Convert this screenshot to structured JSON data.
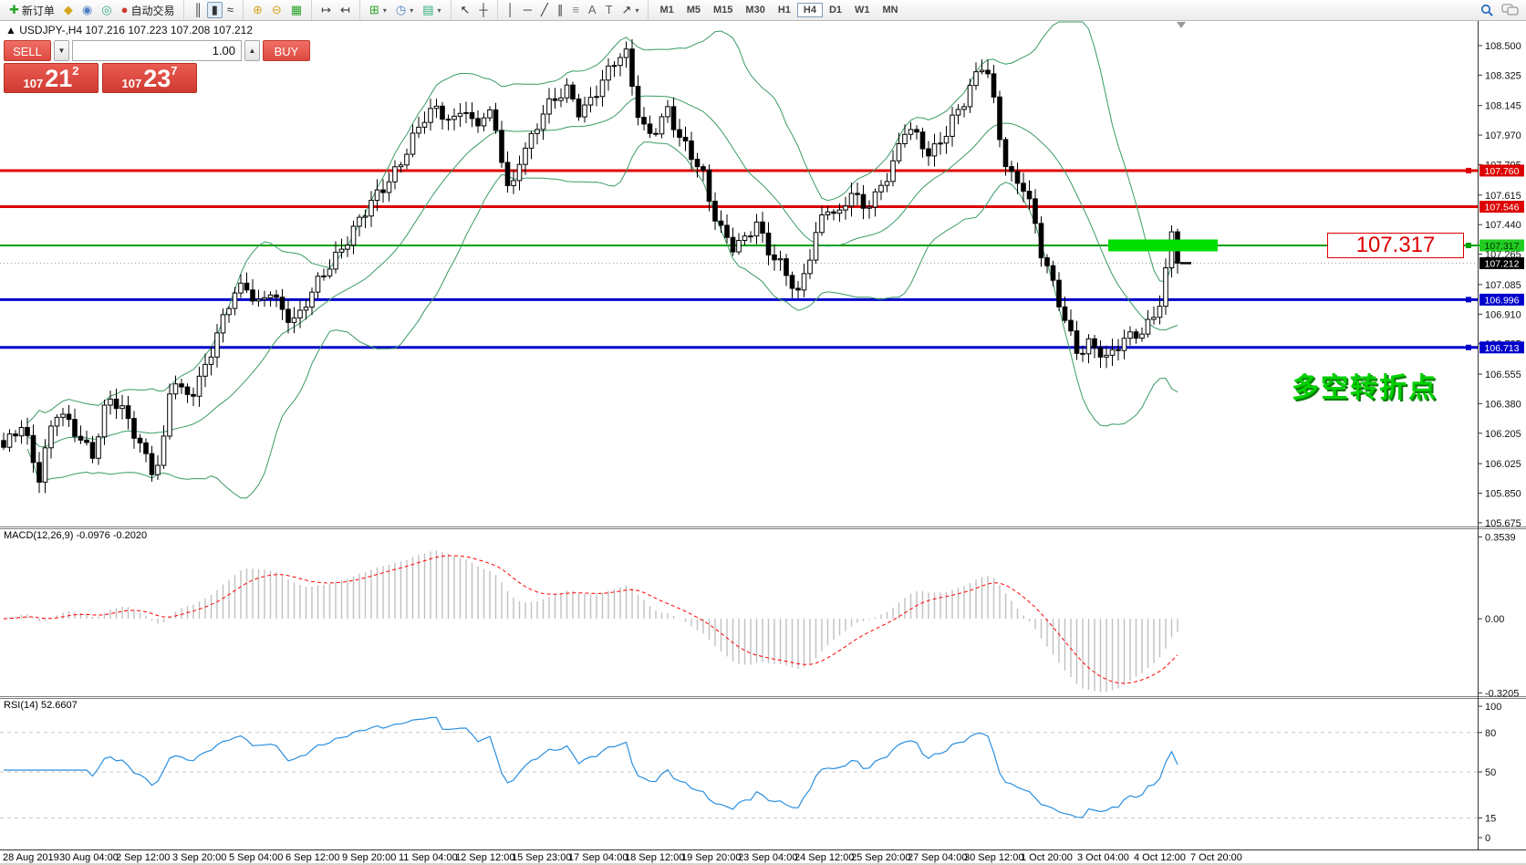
{
  "toolbar": {
    "new_order_label": "新订单",
    "auto_trading_label": "自动交易",
    "timeframes": [
      "M1",
      "M5",
      "M15",
      "M30",
      "H1",
      "H4",
      "D1",
      "W1",
      "MN"
    ],
    "active_timeframe": "H4",
    "icons": {
      "new_order": "✚",
      "tag": "◆",
      "profile": "◉",
      "signal": "◎",
      "auto": "●",
      "bars": "║",
      "candles": "▮",
      "line": "≈",
      "zoom_in": "⊕",
      "zoom_out": "⊖",
      "tile": "▦",
      "shift": "↦",
      "autoscroll": "↤",
      "add_ind": "⊞",
      "periods": "◷",
      "template": "▤",
      "cursor": "↖",
      "cross": "┼",
      "vline": "│",
      "hline": "─",
      "trend": "╱",
      "channel": "∥",
      "fib": "≡",
      "text": "A",
      "label": "T",
      "arrows": "↗",
      "caret": "▾"
    }
  },
  "chart": {
    "marker": "▲",
    "symbol_title": "USDJPY-,H4",
    "ohlc": "107.216 107.223 107.208 107.212"
  },
  "trade_panel": {
    "sell": "SELL",
    "buy": "BUY",
    "volume": "1.00",
    "sell_small": "107",
    "sell_big": "21",
    "sell_sup": "2",
    "buy_small": "107",
    "buy_big": "23",
    "buy_sup": "7"
  },
  "annotations": {
    "price_label": "107.317",
    "turning_point": "多空转折点"
  },
  "indicators": {
    "macd_label": "MACD(12,26,9) -0.0976 -0.2020",
    "rsi_label": "RSI(14) 52.6607"
  },
  "price_axis": {
    "ticks": [
      "108.500",
      "108.325",
      "108.145",
      "107.970",
      "107.795",
      "107.615",
      "107.440",
      "107.265",
      "107.085",
      "106.910",
      "106.735",
      "106.555",
      "106.380",
      "106.205",
      "106.025",
      "105.850",
      "105.675"
    ]
  },
  "time_axis": {
    "labels": [
      "28 Aug 2019",
      "30 Aug 04:00",
      "2 Sep 12:00",
      "3 Sep 20:00",
      "5 Sep 04:00",
      "6 Sep 12:00",
      "9 Sep 20:00",
      "11 Sep 04:00",
      "12 Sep 12:00",
      "15 Sep 23:00",
      "17 Sep 04:00",
      "18 Sep 12:00",
      "19 Sep 20:00",
      "23 Sep 04:00",
      "24 Sep 12:00",
      "25 Sep 20:00",
      "27 Sep 04:00",
      "30 Sep 12:00",
      "1 Oct 20:00",
      "3 Oct 04:00",
      "4 Oct 12:00",
      "7 Oct 20:00"
    ]
  },
  "chart_data": [
    {
      "type": "candlestick",
      "symbol": "USDJPY",
      "timeframe": "H4",
      "ohlc_display": {
        "open": 107.216,
        "high": 107.223,
        "low": 107.208,
        "close": 107.212
      },
      "ylim": [
        105.653,
        108.651
      ],
      "n_candles": 199,
      "close_path_anchors": [
        [
          0.0,
          106.1
        ],
        [
          0.016,
          106.28
        ],
        [
          0.03,
          105.95
        ],
        [
          0.044,
          106.32
        ],
        [
          0.06,
          106.22
        ],
        [
          0.076,
          106.1
        ],
        [
          0.089,
          106.42
        ],
        [
          0.103,
          106.3
        ],
        [
          0.118,
          106.12
        ],
        [
          0.129,
          105.98
        ],
        [
          0.137,
          106.18
        ],
        [
          0.143,
          106.55
        ],
        [
          0.153,
          106.4
        ],
        [
          0.163,
          106.45
        ],
        [
          0.175,
          106.68
        ],
        [
          0.184,
          106.85
        ],
        [
          0.195,
          107.02
        ],
        [
          0.207,
          107.05
        ],
        [
          0.216,
          106.95
        ],
        [
          0.227,
          107.08
        ],
        [
          0.239,
          106.92
        ],
        [
          0.25,
          106.85
        ],
        [
          0.262,
          107.02
        ],
        [
          0.274,
          107.18
        ],
        [
          0.286,
          107.3
        ],
        [
          0.298,
          107.4
        ],
        [
          0.31,
          107.52
        ],
        [
          0.322,
          107.65
        ],
        [
          0.334,
          107.78
        ],
        [
          0.346,
          107.92
        ],
        [
          0.358,
          108.05
        ],
        [
          0.37,
          108.12
        ],
        [
          0.382,
          108.05
        ],
        [
          0.391,
          108.18
        ],
        [
          0.401,
          108.0
        ],
        [
          0.412,
          108.1
        ],
        [
          0.421,
          107.95
        ],
        [
          0.431,
          107.6
        ],
        [
          0.439,
          107.85
        ],
        [
          0.449,
          107.95
        ],
        [
          0.459,
          108.08
        ],
        [
          0.471,
          108.18
        ],
        [
          0.481,
          108.25
        ],
        [
          0.491,
          108.12
        ],
        [
          0.502,
          108.2
        ],
        [
          0.513,
          108.3
        ],
        [
          0.523,
          108.42
        ],
        [
          0.531,
          108.45
        ],
        [
          0.539,
          108.15
        ],
        [
          0.548,
          107.98
        ],
        [
          0.558,
          108.02
        ],
        [
          0.566,
          108.1
        ],
        [
          0.574,
          107.95
        ],
        [
          0.584,
          107.88
        ],
        [
          0.595,
          107.78
        ],
        [
          0.603,
          107.55
        ],
        [
          0.612,
          107.38
        ],
        [
          0.622,
          107.28
        ],
        [
          0.632,
          107.35
        ],
        [
          0.641,
          107.48
        ],
        [
          0.65,
          107.32
        ],
        [
          0.66,
          107.22
        ],
        [
          0.669,
          107.1
        ],
        [
          0.677,
          107.0
        ],
        [
          0.685,
          107.22
        ],
        [
          0.693,
          107.42
        ],
        [
          0.701,
          107.58
        ],
        [
          0.711,
          107.48
        ],
        [
          0.722,
          107.62
        ],
        [
          0.731,
          107.52
        ],
        [
          0.741,
          107.6
        ],
        [
          0.75,
          107.72
        ],
        [
          0.76,
          107.85
        ],
        [
          0.769,
          108.02
        ],
        [
          0.779,
          107.92
        ],
        [
          0.789,
          107.85
        ],
        [
          0.798,
          107.95
        ],
        [
          0.808,
          108.08
        ],
        [
          0.817,
          108.15
        ],
        [
          0.827,
          108.28
        ],
        [
          0.836,
          108.4
        ],
        [
          0.844,
          108.15
        ],
        [
          0.852,
          107.85
        ],
        [
          0.86,
          107.72
        ],
        [
          0.868,
          107.68
        ],
        [
          0.876,
          107.5
        ],
        [
          0.884,
          107.25
        ],
        [
          0.892,
          107.12
        ],
        [
          0.9,
          106.98
        ],
        [
          0.908,
          106.82
        ],
        [
          0.916,
          106.68
        ],
        [
          0.924,
          106.72
        ],
        [
          0.932,
          106.68
        ],
        [
          0.94,
          106.62
        ],
        [
          0.947,
          106.72
        ],
        [
          0.955,
          106.78
        ],
        [
          0.963,
          106.82
        ],
        [
          0.971,
          106.8
        ],
        [
          0.979,
          106.88
        ],
        [
          0.987,
          106.98
        ],
        [
          0.995,
          107.4
        ],
        [
          1.0,
          107.212
        ]
      ],
      "overlays": {
        "bollinger": {
          "period": 20,
          "deviation": 2,
          "color": "#3a9b63"
        }
      },
      "h_lines": [
        {
          "price": 107.76,
          "color": "#dd0000",
          "width": 3,
          "marker": true
        },
        {
          "price": 107.546,
          "color": "#dd0000",
          "width": 3,
          "marker": false
        },
        {
          "price": 107.317,
          "color": "#00a000",
          "width": 2,
          "marker": true,
          "highlight": {
            "x0": 1215,
            "x1": 1335,
            "height": 13,
            "color": "#00dd00"
          }
        },
        {
          "price": 106.996,
          "color": "#0000cc",
          "width": 3,
          "marker": true
        },
        {
          "price": 106.713,
          "color": "#0000cc",
          "width": 3,
          "marker": true
        }
      ],
      "current_price": 107.212,
      "colors": {
        "up_fill": "#ffffff",
        "down_fill": "#000000",
        "outline": "#000000"
      }
    },
    {
      "type": "macd",
      "params": [
        12,
        26,
        9
      ],
      "values": {
        "main": -0.0976,
        "signal": -0.202
      },
      "ylim": [
        -0.331,
        0.383
      ],
      "axis_labels": [
        {
          "v": 0.3539,
          "t": "0.3539"
        },
        {
          "v": 0.0,
          "t": "0.00"
        },
        {
          "v": -0.3205,
          "t": "-0.3205"
        }
      ],
      "hist_color": "#c0c0c0",
      "signal_color": "#ff0000"
    },
    {
      "type": "rsi",
      "period": 14,
      "value": 52.6607,
      "axis_labels": [
        100,
        80,
        50,
        15,
        0
      ],
      "levels": [
        80,
        50,
        15
      ],
      "color": "#2a8fe0",
      "level_color": "#c8c8c8"
    }
  ]
}
